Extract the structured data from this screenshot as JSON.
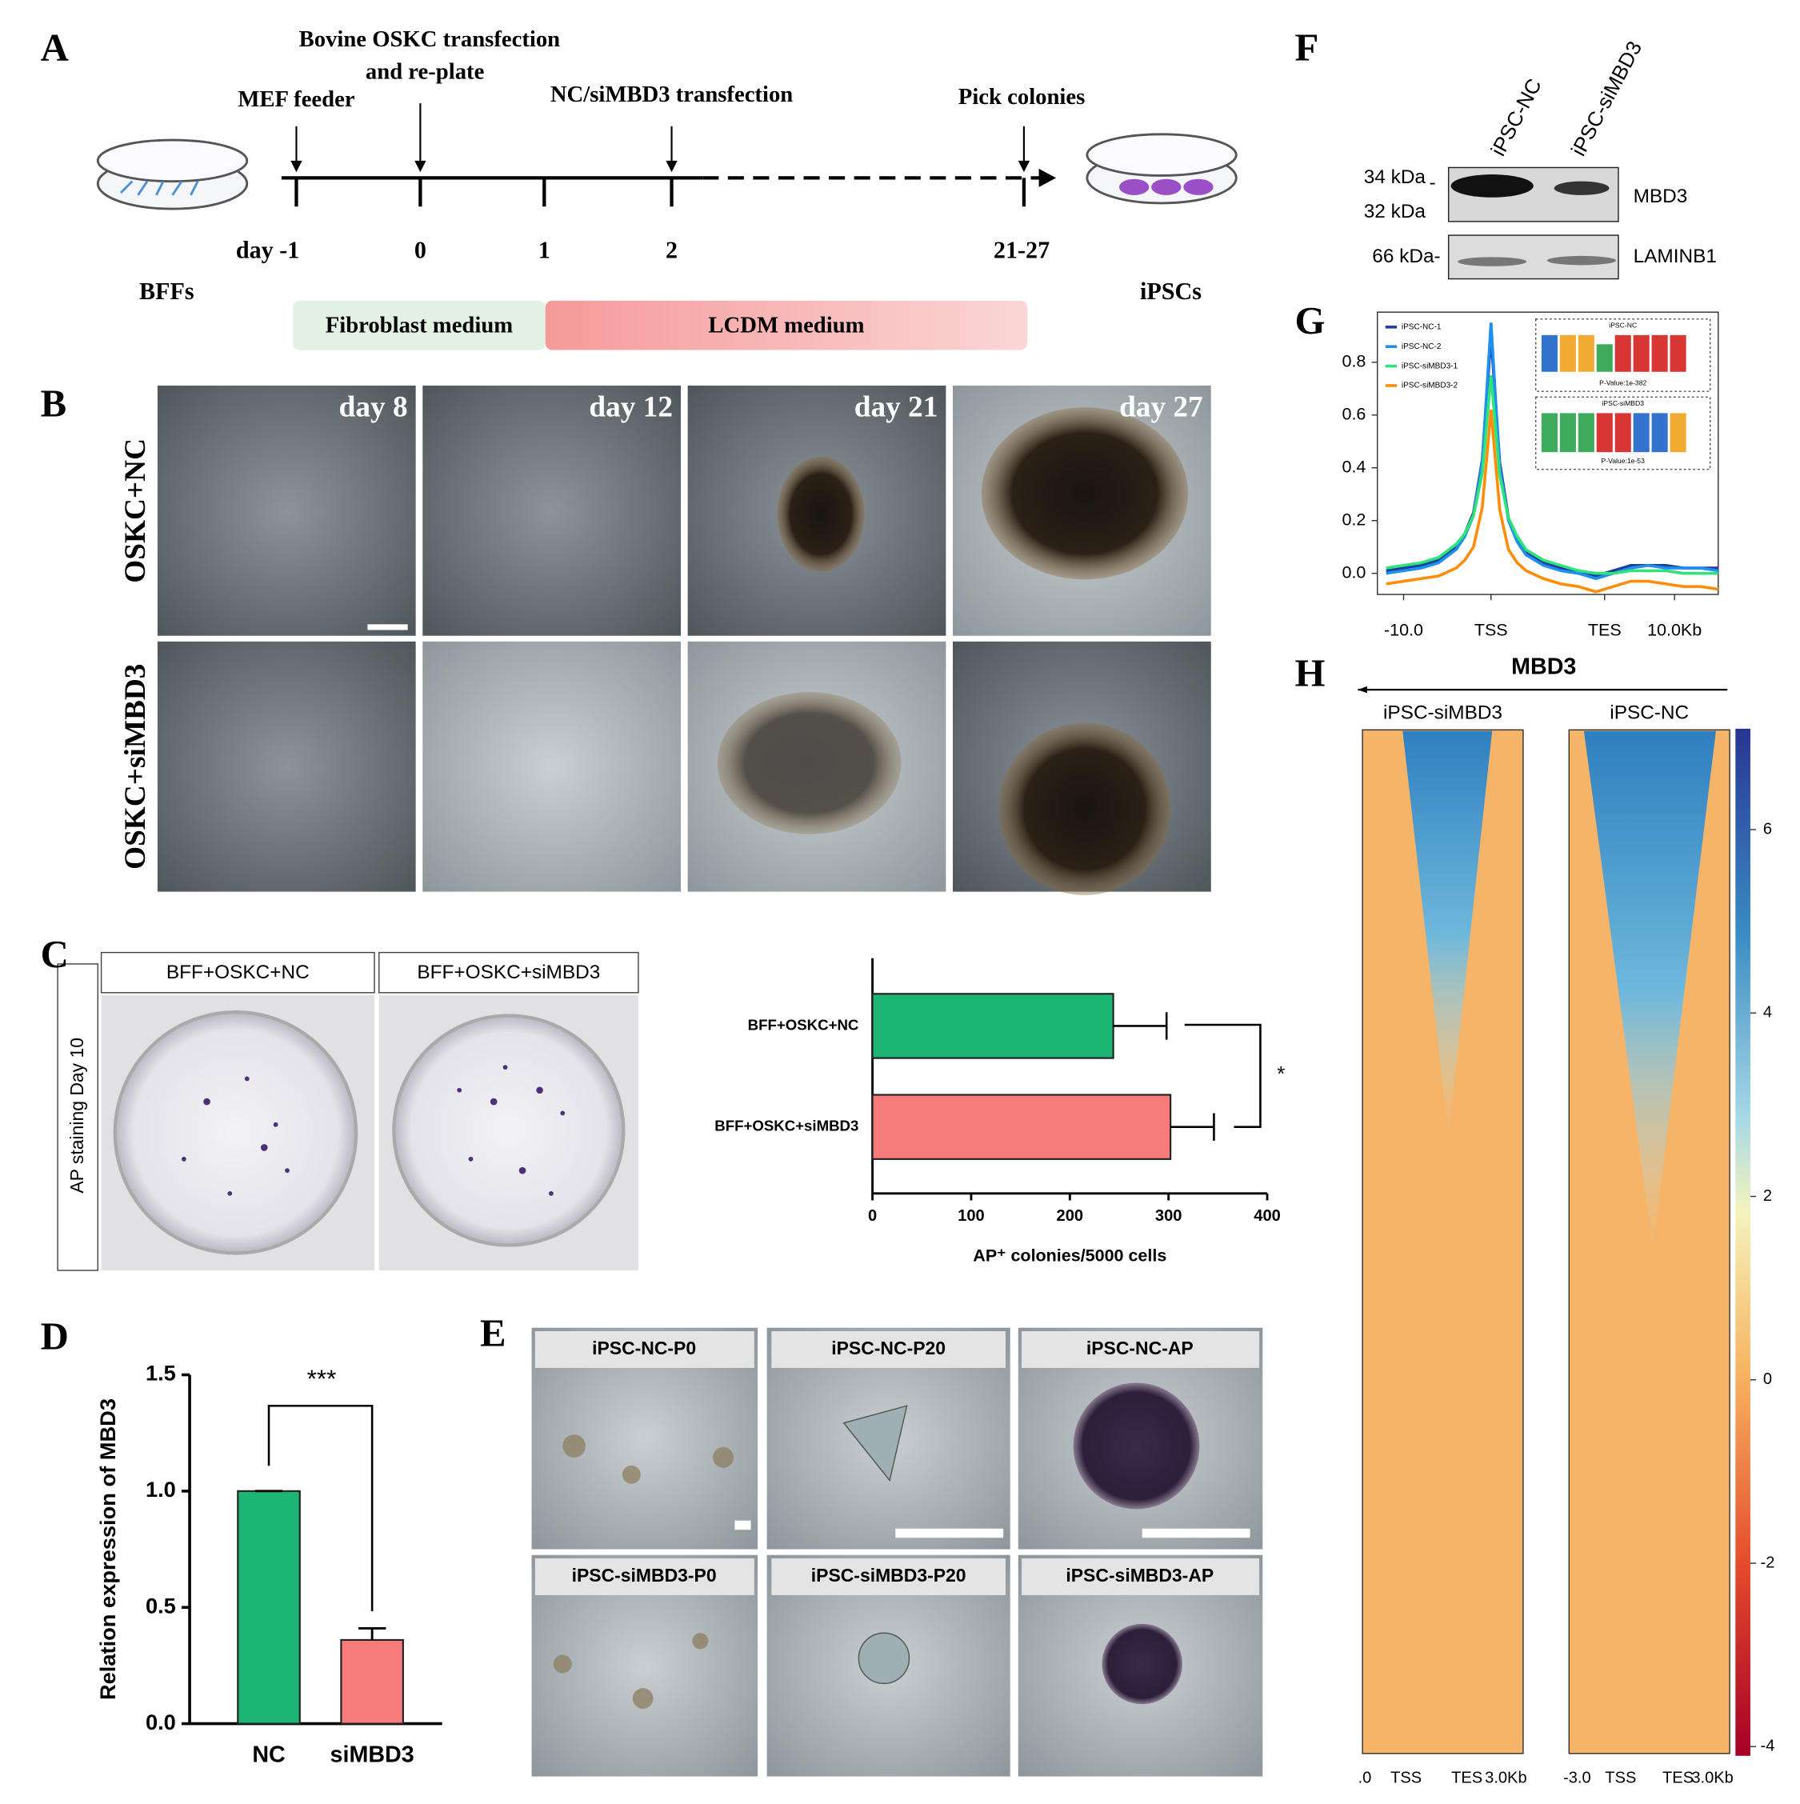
{
  "panel_a": {
    "label": "A",
    "top_labels": [
      "MEF feeder",
      "Bovine OSKC transfection",
      "and re-plate",
      "NC/siMBD3 transfection",
      "Pick colonies"
    ],
    "days": [
      "day -1",
      "0",
      "1",
      "2",
      "21-27"
    ],
    "start": "BFFs",
    "end": "iPSCs",
    "media": [
      "Fibroblast medium",
      "LCDM medium"
    ]
  },
  "panel_b": {
    "label": "B",
    "rows": [
      "OSKC+NC",
      "OSKC+siMBD3"
    ],
    "days": [
      "day 8",
      "day 12",
      "day 21",
      "day 27"
    ]
  },
  "panel_c": {
    "label": "C",
    "images": [
      "BFF+OSKC+NC",
      "BFF+OSKC+siMBD3"
    ],
    "side_label": "AP staining  Day 10",
    "chart_data": {
      "type": "hbar",
      "categories": [
        "BFF+OSKC+NC",
        "BFF+OSKC+siMBD3"
      ],
      "values": [
        244,
        302
      ],
      "errors": [
        54,
        44
      ],
      "colors": [
        "#1db574",
        "#f77b7b"
      ],
      "xlim": [
        0,
        400
      ],
      "xticks": [
        0,
        100,
        200,
        300,
        400
      ],
      "xlabel": "AP⁺ colonies/5000 cells",
      "significance": "*"
    }
  },
  "panel_d": {
    "label": "D",
    "chart_data": {
      "type": "bar",
      "categories": [
        "NC",
        "siMBD3"
      ],
      "values": [
        1.0,
        0.36
      ],
      "errors": [
        0,
        0.05
      ],
      "colors": [
        "#1db574",
        "#f77b7b"
      ],
      "ylim": [
        0,
        1.5
      ],
      "yticks": [
        {
          "value": 0,
          "label": "0.0"
        },
        {
          "value": 0.5,
          "label": "0.5"
        },
        {
          "value": 1,
          "label": "1.0"
        },
        {
          "value": 1.5,
          "label": "1.5"
        }
      ],
      "ylabel": "Relation expression of MBD3",
      "significance": "***"
    }
  },
  "panel_e": {
    "label": "E",
    "images": [
      "iPSC-NC-P0",
      "iPSC-NC-P20",
      "iPSC-NC-AP",
      "iPSC-siMBD3-P0",
      "iPSC-siMBD3-P20",
      "iPSC-siMBD3-AP"
    ]
  },
  "panel_f": {
    "label": "F",
    "lanes": [
      "iPSC-NC",
      "iPSC-siMBD3"
    ],
    "markers": [
      "34 kDa",
      "-",
      "32 kDa",
      "66 kDa-"
    ],
    "proteins": [
      "MBD3",
      "LAMINB1"
    ]
  },
  "panel_g": {
    "label": "G",
    "motifs": [
      {
        "title": "iPSC-NC",
        "pvalue": "P-Value:1e-382"
      },
      {
        "title": "iPSC-siMBD3",
        "pvalue": "P-Value:1e-53"
      }
    ],
    "chart_data": {
      "type": "line",
      "x": [
        -12,
        -10,
        -8,
        -6,
        -4,
        -3,
        -2,
        -1,
        0,
        1,
        2,
        3,
        4,
        6,
        8,
        10,
        12,
        14,
        16,
        18,
        20,
        22,
        24,
        26
      ],
      "series": [
        {
          "name": "iPSC-NC-1",
          "color": "#1c3f9e",
          "values": [
            0.01,
            0.02,
            0.03,
            0.05,
            0.1,
            0.15,
            0.23,
            0.43,
            0.9,
            0.42,
            0.21,
            0.13,
            0.08,
            0.04,
            0.02,
            0.01,
            -0.01,
            0.01,
            0.03,
            0.03,
            0.03,
            0.02,
            0.02,
            0.02
          ]
        },
        {
          "name": "iPSC-NC-2",
          "color": "#1f8ff0",
          "values": [
            0.0,
            0.01,
            0.02,
            0.04,
            0.09,
            0.14,
            0.22,
            0.42,
            0.95,
            0.4,
            0.2,
            0.12,
            0.07,
            0.03,
            0.01,
            0.0,
            -0.02,
            0.0,
            0.02,
            0.03,
            0.02,
            0.02,
            0.02,
            0.01
          ]
        },
        {
          "name": "iPSC-siMBD3-1",
          "color": "#2ee37a",
          "values": [
            0.02,
            0.03,
            0.04,
            0.06,
            0.11,
            0.15,
            0.22,
            0.38,
            0.75,
            0.37,
            0.21,
            0.14,
            0.09,
            0.05,
            0.03,
            0.01,
            0.0,
            0.0,
            0.01,
            0.01,
            0.01,
            0.0,
            0.0,
            0.0
          ]
        },
        {
          "name": "iPSC-siMBD3-2",
          "color": "#ff8c0a",
          "values": [
            -0.04,
            -0.03,
            -0.02,
            -0.01,
            0.02,
            0.05,
            0.1,
            0.25,
            0.62,
            0.24,
            0.09,
            0.04,
            0.01,
            -0.02,
            -0.04,
            -0.05,
            -0.07,
            -0.05,
            -0.03,
            -0.03,
            -0.04,
            -0.05,
            -0.05,
            -0.06
          ]
        }
      ],
      "xlim": [
        -13,
        26
      ],
      "xticks": [
        {
          "value": -10,
          "label": "-10.0"
        },
        {
          "value": 0,
          "label": "TSS"
        },
        {
          "value": 13,
          "label": "TES"
        },
        {
          "value": 21,
          "label": "10.0Kb"
        }
      ],
      "ylim": [
        -0.08,
        0.99
      ],
      "yticks": [
        {
          "value": 0,
          "label": "0.0"
        },
        {
          "value": 0.2,
          "label": "0.2"
        },
        {
          "value": 0.4,
          "label": "0.4"
        },
        {
          "value": 0.6,
          "label": "0.6"
        },
        {
          "value": 0.8,
          "label": "0.8"
        }
      ]
    }
  },
  "panel_h": {
    "label": "H",
    "title": "MBD3",
    "chart_data": {
      "type": "heatmap",
      "panels": [
        {
          "name": "iPSC-siMBD3",
          "xticks": [
            ".0",
            "TSS",
            "TES",
            "3.0Kb"
          ]
        },
        {
          "name": "iPSC-NC",
          "xticks": [
            "-3.0",
            "TSS",
            "TES",
            "3.0Kb"
          ]
        }
      ],
      "colorbar_lim": [
        -4.1,
        7.1
      ],
      "colorbar_ticks": [
        -4,
        -2,
        0,
        2,
        4,
        6
      ]
    }
  }
}
